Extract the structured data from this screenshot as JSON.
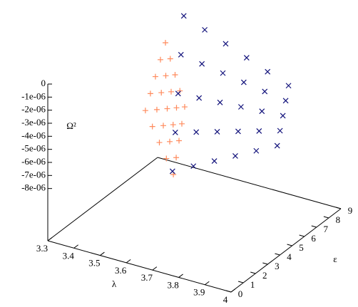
{
  "chart_data": {
    "type": "scatter3d",
    "xlabel": "λ",
    "ylabel": "ε",
    "zlabel": "Ω²",
    "xlim": [
      3.3,
      4
    ],
    "xticks": [
      3.3,
      3.4,
      3.5,
      3.6,
      3.7,
      3.8,
      3.9,
      4
    ],
    "ylim": [
      0,
      9
    ],
    "yticks": [
      0,
      1,
      2,
      3,
      4,
      5,
      6,
      7,
      8,
      9
    ],
    "zlim": [
      -1.2e-05,
      0
    ],
    "zticks": [
      0,
      {
        "value": -1e-06,
        "label": "-1e-06"
      },
      {
        "value": -2e-06,
        "label": "-2e-06"
      },
      {
        "value": -3e-06,
        "label": "-3e-06"
      },
      {
        "value": -4e-06,
        "label": "-4e-06"
      },
      {
        "value": -5e-06,
        "label": "-5e-06"
      },
      {
        "value": -6e-06,
        "label": "-6e-06"
      },
      {
        "value": -7e-06,
        "label": "-7e-06"
      },
      {
        "value": -8e-06,
        "label": "-8e-06"
      }
    ],
    "series": [
      {
        "color": "#ff8a5c",
        "marker": "plus",
        "x": [
          3.33,
          3.36,
          3.39,
          3.42,
          3.45,
          3.3225,
          3.3575,
          3.3925,
          3.4275,
          3.4625,
          3.315,
          3.355,
          3.395,
          3.435,
          3.475,
          3.3075,
          3.3525,
          3.3975,
          3.4425,
          3.4875,
          3.3,
          3.35,
          3.4,
          3.45,
          3.5
        ],
        "y": [
          9,
          8.75,
          8.5,
          8.25,
          8,
          8.75,
          8.4375,
          8.125,
          7.8125,
          7.5,
          8.5,
          8.125,
          7.75,
          7.375,
          7,
          8.25,
          7.8125,
          7.375,
          6.9375,
          6.5,
          8,
          7.5,
          7,
          6.5,
          6
        ],
        "z": [
          -3.05e-06,
          -3.9325e-06,
          -4.815e-06,
          -5.6975e-06,
          -6.58e-06,
          -4.2125e-06,
          -5.021875e-06,
          -5.83125e-06,
          -6.640625e-06,
          -7.45e-06,
          -5.375e-06,
          -6.11125e-06,
          -6.8475e-06,
          -7.58375e-06,
          -8.32e-06,
          -6.5375e-06,
          -7.200625e-06,
          -7.86375e-06,
          -8.526875e-06,
          -9.19e-06,
          -7.7e-06,
          -8.29e-06,
          -8.88e-06,
          -9.47e-06,
          -1.006e-05
        ]
      },
      {
        "color": "#10107a",
        "marker": "cross",
        "x": [
          3.4,
          3.48,
          3.56,
          3.64,
          3.72,
          3.8,
          3.4125,
          3.4925,
          3.5725,
          3.6525,
          3.7325,
          3.8125,
          3.425,
          3.505,
          3.585,
          3.665,
          3.745,
          3.825,
          3.4375,
          3.5175,
          3.5975,
          3.6775,
          3.7575,
          3.8375,
          3.45,
          3.53,
          3.61,
          3.69,
          3.77,
          3.85
        ],
        "y": [
          9,
          9,
          9,
          9,
          9,
          9,
          8.5,
          8.5,
          8.5,
          8.5,
          8.5,
          8.5,
          8,
          8,
          8,
          8,
          8,
          8,
          7.5,
          7.5,
          7.5,
          7.5,
          7.5,
          7.5,
          7,
          7,
          7,
          7,
          7,
          7
        ],
        "z": [
          -6e-07,
          -1.22e-06,
          -1.84e-06,
          -2.46e-06,
          -3.08e-06,
          -3.7e-06,
          -3.15e-06,
          -3.405e-06,
          -3.66e-06,
          -3.915e-06,
          -4.17e-06,
          -4.425e-06,
          -5.7e-06,
          -5.59e-06,
          -5.48e-06,
          -5.37e-06,
          -5.26e-06,
          -5.15e-06,
          -8.25e-06,
          -7.775e-06,
          -7.3e-06,
          -6.825e-06,
          -6.35e-06,
          -5.875e-06,
          -1.08e-05,
          -9.96e-06,
          -9.12e-06,
          -8.28e-06,
          -7.44e-06,
          -6.6e-06
        ]
      }
    ]
  }
}
